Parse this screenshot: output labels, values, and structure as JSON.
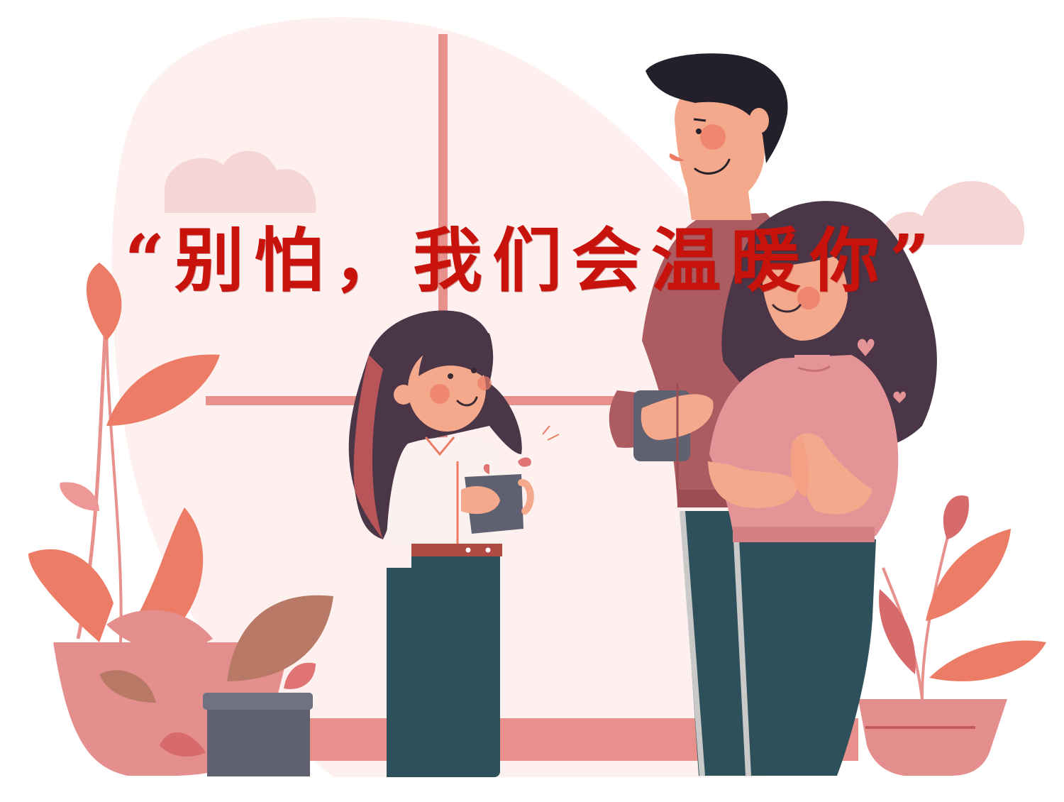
{
  "headline": "“别怕，我们会温暖你”",
  "colors": {
    "headline": "#c8130d",
    "background": "#ffffff",
    "blob": "#fdf0ef",
    "window_frame": "#e8918c",
    "cloud": "#f6d6d4",
    "leaf_orange": "#ec7c66",
    "leaf_pink": "#e58e8e",
    "leaf_brown": "#b87a66",
    "pot": "#5f6070",
    "hair": "#4a3647",
    "man_hair": "#23202b",
    "skin": "#f5a98c",
    "pants": "#2e505a",
    "man_sweater": "#ac5b60",
    "woman_sweater": "#e49497",
    "girl_shirt": "#fbf2ef"
  },
  "figures": [
    "man-figure",
    "woman-figure",
    "girl-figure",
    "left-plant",
    "right-plant",
    "potted-plant"
  ]
}
